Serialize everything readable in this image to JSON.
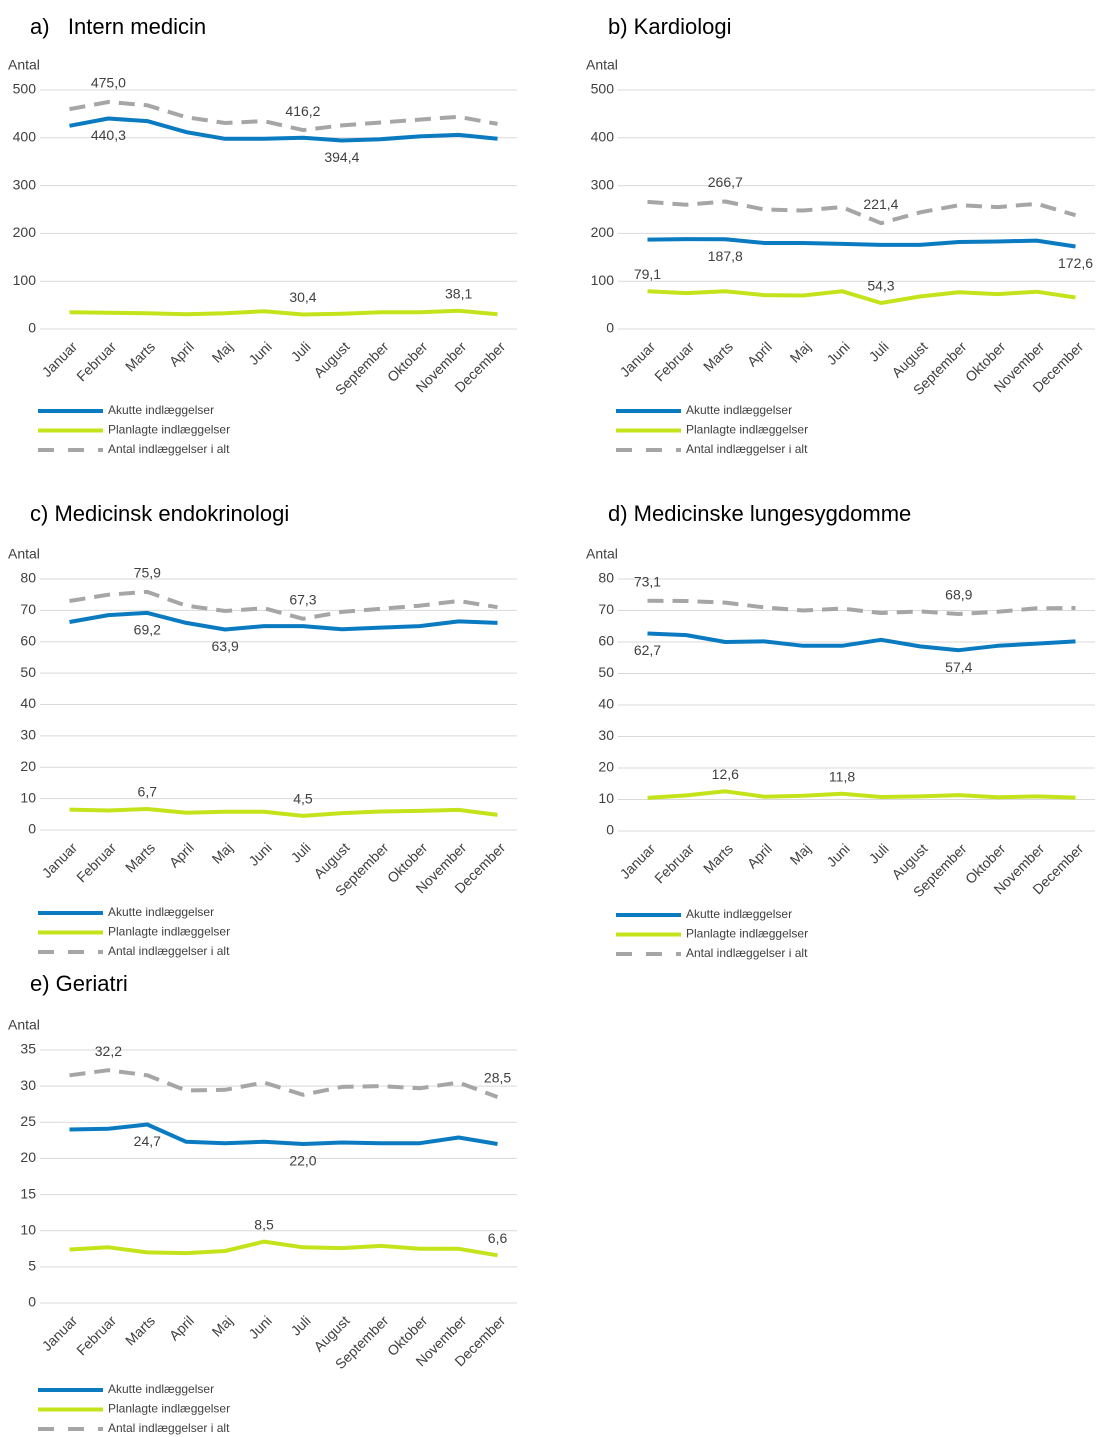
{
  "chart_data": [
    {
      "type": "line",
      "title": "a)   Intern medicin",
      "y_label": "Antal",
      "categories": [
        "Januar",
        "Februar",
        "Marts",
        "April",
        "Maj",
        "Juni",
        "Juli",
        "August",
        "September",
        "Oktober",
        "November",
        "December"
      ],
      "ylim": [
        0,
        500
      ],
      "yticks": [
        0,
        100,
        200,
        300,
        400,
        500
      ],
      "grid": true,
      "series": [
        {
          "name": "Akutte indlæggelser",
          "color": "#0a7bc1",
          "style": "solid",
          "values": [
            425,
            440.3,
            435,
            412,
            398,
            398,
            400,
            394.4,
            397,
            403,
            406,
            398
          ],
          "value_labels": [
            null,
            "440,3",
            null,
            null,
            null,
            null,
            null,
            "394,4",
            null,
            null,
            null,
            null
          ]
        },
        {
          "name": "Planlagte indlæggelser",
          "color": "#c5e31a",
          "style": "solid",
          "values": [
            35,
            34,
            33,
            31,
            33,
            37,
            30.4,
            32,
            35,
            35,
            38.1,
            31
          ],
          "value_labels": [
            null,
            null,
            null,
            null,
            null,
            null,
            "30,4",
            null,
            null,
            null,
            "38,1",
            null
          ]
        },
        {
          "name": "Antal indlæggelser i alt",
          "color": "#a6a6a6",
          "style": "dashed",
          "values": [
            460,
            475.0,
            468,
            443,
            431,
            435,
            416.2,
            426,
            432,
            438,
            444,
            429
          ],
          "value_labels": [
            null,
            "475,0",
            null,
            null,
            null,
            null,
            "416,2",
            null,
            null,
            null,
            null,
            null
          ]
        }
      ]
    },
    {
      "type": "line",
      "title": "b) Kardiologi",
      "y_label": "Antal",
      "categories": [
        "Januar",
        "Februar",
        "Marts",
        "April",
        "Maj",
        "Juni",
        "Juli",
        "August",
        "September",
        "Oktober",
        "November",
        "December"
      ],
      "ylim": [
        0,
        500
      ],
      "yticks": [
        0,
        100,
        200,
        300,
        400,
        500
      ],
      "grid": true,
      "series": [
        {
          "name": "Akutte indlæggelser",
          "color": "#0a7bc1",
          "style": "solid",
          "values": [
            187,
            188,
            187.8,
            180,
            180,
            178,
            176,
            176,
            182,
            183,
            185,
            172.6
          ],
          "value_labels": [
            null,
            null,
            "187,8",
            null,
            null,
            null,
            null,
            null,
            null,
            null,
            null,
            "172,6"
          ]
        },
        {
          "name": "Planlagte indlæggelser",
          "color": "#c5e31a",
          "style": "solid",
          "values": [
            79.1,
            75,
            79,
            71,
            70,
            79,
            54.3,
            68,
            77,
            73,
            78,
            66
          ],
          "value_labels": [
            "79,1",
            null,
            null,
            null,
            null,
            null,
            "54,3",
            null,
            null,
            null,
            null,
            null
          ]
        },
        {
          "name": "Antal indlæggelser i alt",
          "color": "#a6a6a6",
          "style": "dashed",
          "values": [
            266,
            260,
            266.7,
            250,
            248,
            255,
            221.4,
            244,
            259,
            255,
            262,
            238
          ],
          "value_labels": [
            null,
            null,
            "266,7",
            null,
            null,
            null,
            "221,4",
            null,
            null,
            null,
            null,
            null
          ]
        }
      ]
    },
    {
      "type": "line",
      "title": "c) Medicinsk endokrinologi",
      "y_label": "Antal",
      "categories": [
        "Januar",
        "Februar",
        "Marts",
        "April",
        "Maj",
        "Juni",
        "Juli",
        "August",
        "September",
        "Oktober",
        "November",
        "December"
      ],
      "ylim": [
        0,
        80
      ],
      "yticks": [
        0,
        10,
        20,
        30,
        40,
        50,
        60,
        70,
        80
      ],
      "grid": true,
      "series": [
        {
          "name": "Akutte indlæggelser",
          "color": "#0a7bc1",
          "style": "solid",
          "values": [
            66.3,
            68.5,
            69.2,
            66,
            63.9,
            65,
            65,
            64,
            64.5,
            65,
            66.5,
            66
          ],
          "value_labels": [
            null,
            null,
            "69,2",
            null,
            "63,9",
            null,
            null,
            null,
            null,
            null,
            null,
            null
          ]
        },
        {
          "name": "Planlagte indlæggelser",
          "color": "#c5e31a",
          "style": "solid",
          "values": [
            6.5,
            6.2,
            6.7,
            5.5,
            5.8,
            5.8,
            4.5,
            5.4,
            5.9,
            6.1,
            6.4,
            4.8
          ],
          "value_labels": [
            null,
            null,
            "6,7",
            null,
            null,
            null,
            "4,5",
            null,
            null,
            null,
            null,
            null
          ]
        },
        {
          "name": "Antal indlæggelser i alt",
          "color": "#a6a6a6",
          "style": "dashed",
          "values": [
            73,
            75,
            75.9,
            71.5,
            69.8,
            70.7,
            67.3,
            69.5,
            70.5,
            71.5,
            73,
            71
          ],
          "value_labels": [
            null,
            null,
            "75,9",
            null,
            null,
            null,
            "67,3",
            null,
            null,
            null,
            null,
            null
          ]
        }
      ]
    },
    {
      "type": "line",
      "title": "d) Medicinske lungesygdomme",
      "y_label": "Antal",
      "categories": [
        "Januar",
        "Februar",
        "Marts",
        "April",
        "Maj",
        "Juni",
        "Juli",
        "August",
        "September",
        "Oktober",
        "November",
        "December"
      ],
      "ylim": [
        0,
        80
      ],
      "yticks": [
        0,
        10,
        20,
        30,
        40,
        50,
        60,
        70,
        80
      ],
      "grid": true,
      "series": [
        {
          "name": "Akutte indlæggelser",
          "color": "#0a7bc1",
          "style": "solid",
          "values": [
            62.7,
            62.2,
            60,
            60.2,
            58.8,
            58.8,
            60.7,
            58.6,
            57.4,
            58.8,
            59.5,
            60.2
          ],
          "value_labels": [
            "62,7",
            null,
            null,
            null,
            null,
            null,
            null,
            null,
            "57,4",
            null,
            null,
            null
          ]
        },
        {
          "name": "Planlagte indlæggelser",
          "color": "#c5e31a",
          "style": "solid",
          "values": [
            10.5,
            11.3,
            12.6,
            10.9,
            11.2,
            11.8,
            10.8,
            11,
            11.4,
            10.7,
            11,
            10.6
          ],
          "value_labels": [
            null,
            null,
            "12,6",
            null,
            null,
            "11,8",
            null,
            null,
            null,
            null,
            null,
            null
          ]
        },
        {
          "name": "Antal indlæggelser i alt",
          "color": "#a6a6a6",
          "style": "dashed",
          "values": [
            73.1,
            73,
            72.5,
            71,
            70,
            70.6,
            69.2,
            69.7,
            68.9,
            69.6,
            70.7,
            70.8
          ],
          "value_labels": [
            "73,1",
            null,
            null,
            null,
            null,
            null,
            null,
            null,
            "68,9",
            null,
            null,
            null
          ]
        }
      ]
    },
    {
      "type": "line",
      "title": "e) Geriatri",
      "y_label": "Antal",
      "categories": [
        "Januar",
        "Februar",
        "Marts",
        "April",
        "Maj",
        "Juni",
        "Juli",
        "August",
        "September",
        "Oktober",
        "November",
        "December"
      ],
      "ylim": [
        0,
        35
      ],
      "yticks": [
        0,
        5,
        10,
        15,
        20,
        25,
        30,
        35
      ],
      "grid": true,
      "series": [
        {
          "name": "Akutte indlæggelser",
          "color": "#0a7bc1",
          "style": "solid",
          "values": [
            24,
            24.1,
            24.7,
            22.3,
            22.1,
            22.3,
            22.0,
            22.2,
            22.1,
            22.1,
            22.9,
            22.0
          ],
          "value_labels": [
            null,
            null,
            "24,7",
            null,
            null,
            null,
            "22,0",
            null,
            null,
            null,
            null,
            null
          ]
        },
        {
          "name": "Planlagte indlæggelser",
          "color": "#c5e31a",
          "style": "solid",
          "values": [
            7.4,
            7.7,
            7.0,
            6.9,
            7.2,
            8.5,
            7.7,
            7.6,
            7.9,
            7.5,
            7.5,
            6.6
          ],
          "value_labels": [
            null,
            null,
            null,
            null,
            null,
            "8,5",
            null,
            null,
            null,
            null,
            null,
            "6,6"
          ]
        },
        {
          "name": "Antal indlæggelser i alt",
          "color": "#a6a6a6",
          "style": "dashed",
          "values": [
            31.5,
            32.2,
            31.5,
            29.4,
            29.5,
            30.5,
            28.8,
            29.9,
            30.0,
            29.7,
            30.5,
            28.5
          ],
          "value_labels": [
            null,
            "32,2",
            null,
            null,
            null,
            null,
            null,
            null,
            null,
            null,
            null,
            "28,5"
          ]
        }
      ]
    }
  ]
}
